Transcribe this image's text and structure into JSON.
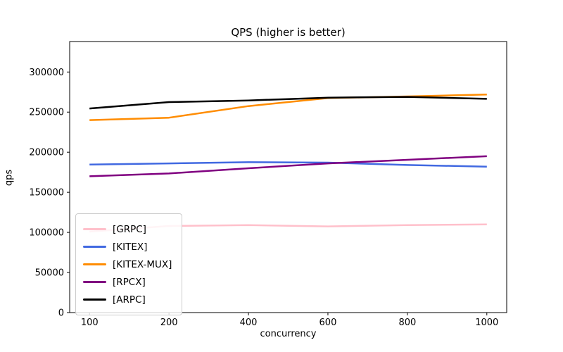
{
  "figure": {
    "background": "#ffffff",
    "axis_color": "#000000",
    "legend_border_color": "#cccccc"
  },
  "chart_data": {
    "type": "line",
    "title": "QPS (higher is better)",
    "xlabel": "concurrency",
    "ylabel": "qps",
    "categories": [
      "100",
      "200",
      "400",
      "600",
      "800",
      "1000"
    ],
    "x_spacing": "categorical-equal",
    "ylim": [
      0,
      338000
    ],
    "yticks": [
      0,
      50000,
      100000,
      150000,
      200000,
      250000,
      300000
    ],
    "grid": false,
    "legend_position": "lower-left",
    "series": [
      {
        "name": "[GRPC]",
        "color": "#ffc0cb",
        "values": [
          101000,
          108000,
          109000,
          107500,
          109000,
          110000
        ]
      },
      {
        "name": "[KITEX]",
        "color": "#4169e1",
        "values": [
          184500,
          186000,
          187500,
          187000,
          184000,
          182000
        ]
      },
      {
        "name": "[KITEX-MUX]",
        "color": "#ff8c00",
        "values": [
          240000,
          243000,
          257500,
          267500,
          269500,
          272000
        ]
      },
      {
        "name": "[RPCX]",
        "color": "#800080",
        "values": [
          170000,
          173500,
          180000,
          186000,
          190500,
          195000
        ]
      },
      {
        "name": "[ARPC]",
        "color": "#000000",
        "values": [
          254500,
          262500,
          264500,
          268000,
          269000,
          266500
        ]
      }
    ]
  }
}
